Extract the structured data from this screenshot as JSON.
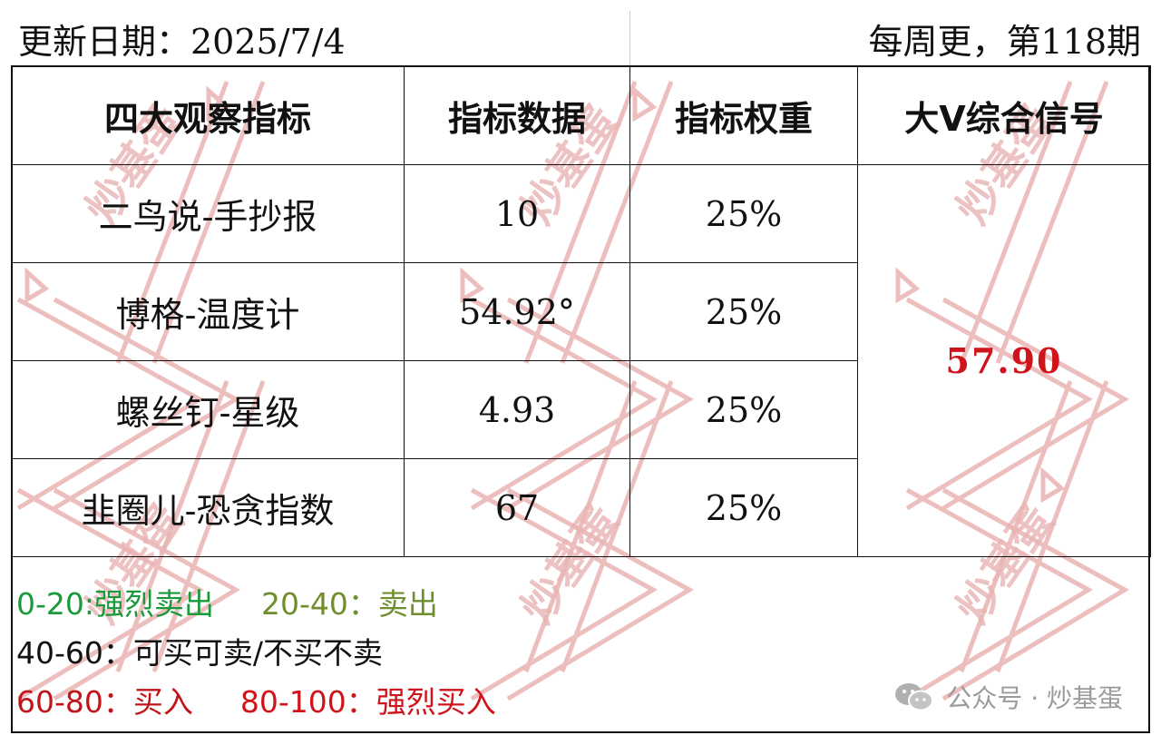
{
  "header": {
    "update_date": "更新日期：2025/7/4",
    "issue": "每周更，第118期"
  },
  "table": {
    "headers": [
      "四大观察指标",
      "指标数据",
      "指标权重",
      "大V综合信号"
    ],
    "rows": [
      {
        "indicator": "二鸟说-手抄报",
        "value": "10",
        "weight": "25%"
      },
      {
        "indicator": "博格-温度计",
        "value": "54.92°",
        "weight": "25%"
      },
      {
        "indicator": "螺丝钉-星级",
        "value": "4.93",
        "weight": "25%"
      },
      {
        "indicator": "韭圈儿-恐贪指数",
        "value": "67",
        "weight": "25%"
      }
    ],
    "composite_signal": "57.90"
  },
  "legend": {
    "strong_sell": "0-20:强烈卖出",
    "sell": "20-40：卖出",
    "neutral": "40-60：可买可卖/不买不卖",
    "buy": "60-80：买入",
    "strong_buy": "80-100：强烈买入"
  },
  "colors": {
    "strong_sell": "#1a9a3a",
    "sell": "#6f8f2f",
    "neutral": "#111111",
    "buy": "#c0151b",
    "strong_buy": "#d0141b",
    "signal": "#d0141b",
    "watermark": "#e7a8a8"
  },
  "watermark": {
    "text": "炒基蛋",
    "account_label": "公众号 · 炒基蛋",
    "icon": "wechat-icon"
  }
}
